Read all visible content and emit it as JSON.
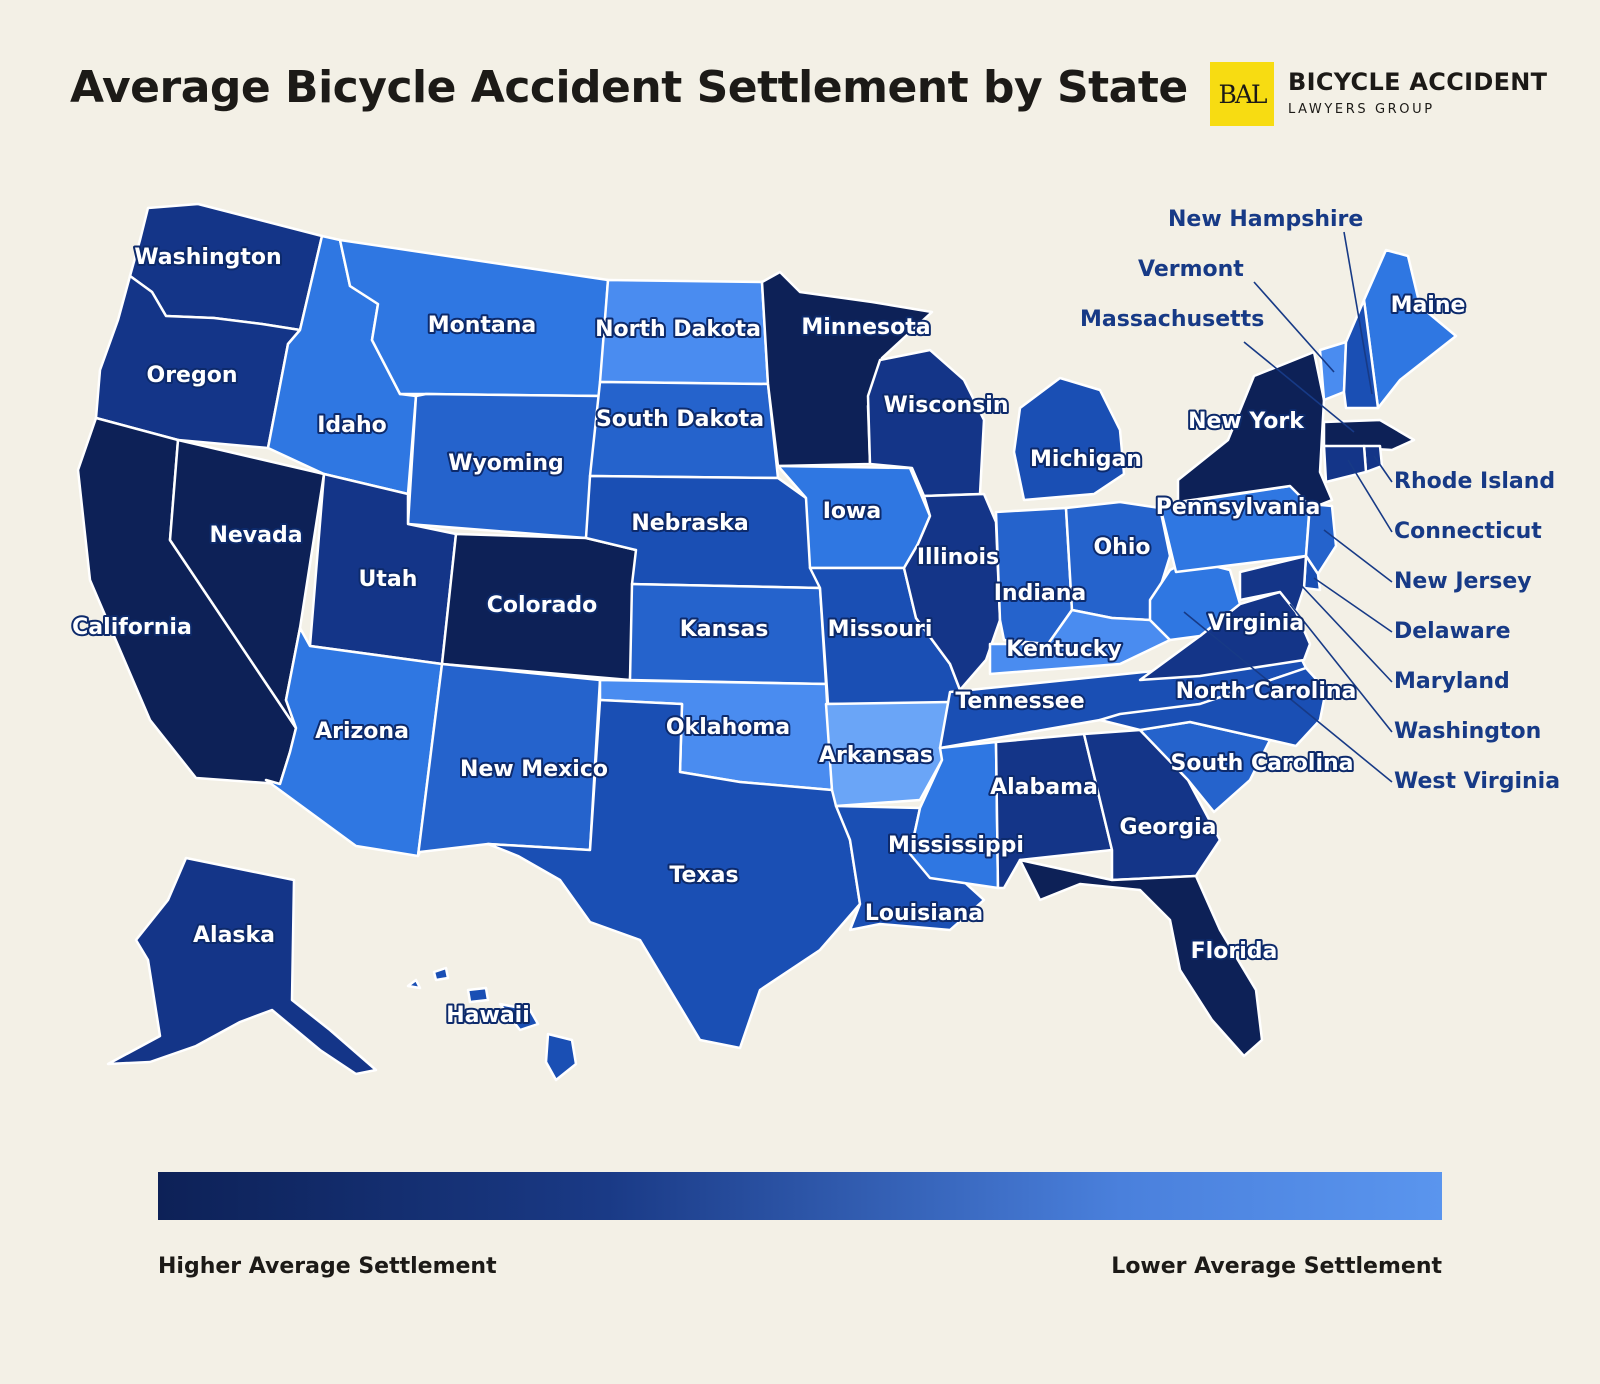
{
  "title": "Average Bicycle Accident Settlement by State",
  "logo": {
    "initials": "BAL",
    "main": "BICYCLE ACCIDENT",
    "sub": "LAWYERS GROUP",
    "color": "#f7dc12"
  },
  "legend": {
    "high_label": "Higher Average Settlement",
    "low_label": "Lower Average Settlement",
    "colors": [
      "#0d2157",
      "#5a95ee"
    ]
  },
  "chart_data": {
    "type": "choropleth",
    "scale": "shade 1 = higher average settlement (darkest), 7 = lower average settlement (lightest)",
    "states": [
      {
        "name": "Washington",
        "shade": 2
      },
      {
        "name": "Oregon",
        "shade": 2
      },
      {
        "name": "California",
        "shade": 1
      },
      {
        "name": "Nevada",
        "shade": 1
      },
      {
        "name": "Idaho",
        "shade": 5
      },
      {
        "name": "Montana",
        "shade": 5
      },
      {
        "name": "Wyoming",
        "shade": 4
      },
      {
        "name": "Utah",
        "shade": 2
      },
      {
        "name": "Colorado",
        "shade": 1
      },
      {
        "name": "Arizona",
        "shade": 5
      },
      {
        "name": "New Mexico",
        "shade": 4
      },
      {
        "name": "North Dakota",
        "shade": 6
      },
      {
        "name": "South Dakota",
        "shade": 4
      },
      {
        "name": "Nebraska",
        "shade": 3
      },
      {
        "name": "Kansas",
        "shade": 4
      },
      {
        "name": "Oklahoma",
        "shade": 6
      },
      {
        "name": "Texas",
        "shade": 3
      },
      {
        "name": "Minnesota",
        "shade": 1
      },
      {
        "name": "Iowa",
        "shade": 5
      },
      {
        "name": "Missouri",
        "shade": 3
      },
      {
        "name": "Arkansas",
        "shade": 7
      },
      {
        "name": "Louisiana",
        "shade": 3
      },
      {
        "name": "Wisconsin",
        "shade": 2
      },
      {
        "name": "Illinois",
        "shade": 2
      },
      {
        "name": "Michigan",
        "shade": 3
      },
      {
        "name": "Indiana",
        "shade": 4
      },
      {
        "name": "Ohio",
        "shade": 4
      },
      {
        "name": "Kentucky",
        "shade": 6
      },
      {
        "name": "Tennessee",
        "shade": 3
      },
      {
        "name": "Mississippi",
        "shade": 5
      },
      {
        "name": "Alabama",
        "shade": 2
      },
      {
        "name": "Georgia",
        "shade": 2
      },
      {
        "name": "Florida",
        "shade": 1
      },
      {
        "name": "South Carolina",
        "shade": 4
      },
      {
        "name": "North Carolina",
        "shade": 3
      },
      {
        "name": "Virginia",
        "shade": 2
      },
      {
        "name": "West Virginia",
        "shade": 5
      },
      {
        "name": "Pennsylvania",
        "shade": 5
      },
      {
        "name": "New York",
        "shade": 1
      },
      {
        "name": "Maine",
        "shade": 5
      },
      {
        "name": "Vermont",
        "shade": 6
      },
      {
        "name": "New Hampshire",
        "shade": 3
      },
      {
        "name": "Massachusetts",
        "shade": 1
      },
      {
        "name": "Rhode Island",
        "shade": 2
      },
      {
        "name": "Connecticut",
        "shade": 2
      },
      {
        "name": "New Jersey",
        "shade": 4
      },
      {
        "name": "Delaware",
        "shade": 3
      },
      {
        "name": "Maryland",
        "shade": 2
      },
      {
        "name": "Washington",
        "shade": 2
      },
      {
        "name": "Alaska",
        "shade": 2
      },
      {
        "name": "Hawaii",
        "shade": 3
      }
    ],
    "callouts": [
      "New Hampshire",
      "Vermont",
      "Massachusetts",
      "Rhode Island",
      "Connecticut",
      "New Jersey",
      "Delaware",
      "Maryland",
      "Washington",
      "West Virginia"
    ]
  }
}
